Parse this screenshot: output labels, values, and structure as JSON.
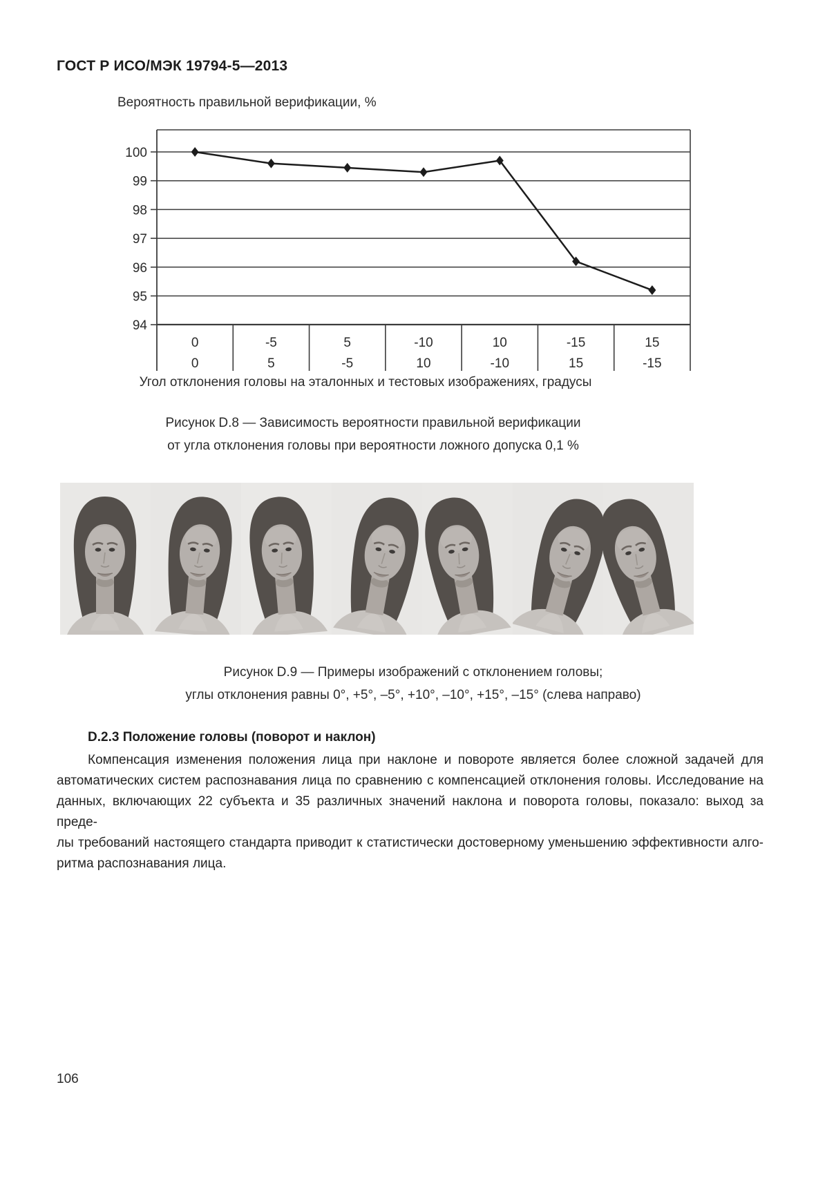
{
  "page": {
    "header": "ГОСТ Р ИСО/МЭК 19794-5—2013",
    "page_number": "106",
    "background": "#ffffff",
    "text_color": "#262626"
  },
  "chart_data": {
    "type": "line",
    "title": "Вероятность правильной верификации, %",
    "xlabel": "Угол отклонения головы на эталонных и тестовых изображениях, градусы",
    "x_tick_rows": [
      [
        "0",
        "-5",
        "5",
        "-10",
        "10",
        "-15",
        "15"
      ],
      [
        "0",
        "5",
        "-5",
        "10",
        "-10",
        "15",
        "-15"
      ]
    ],
    "values": [
      100,
      99.6,
      99.45,
      99.3,
      99.7,
      96.2,
      95.2
    ],
    "yticks": [
      100,
      99,
      98,
      97,
      96,
      95,
      94
    ],
    "ylim": [
      94,
      100.8
    ],
    "grid": true,
    "legend": "none",
    "marker": "diamond",
    "line_color": "#1c1c1c",
    "axis_color": "#3c3c3c"
  },
  "figure_d8": {
    "caption_line1": "Рисунок D.8 — Зависимость вероятности правильной верификации",
    "caption_line2": "от угла отклонения головы при вероятности ложного допуска 0,1 %"
  },
  "figure_d9": {
    "caption_line1": "Рисунок D.9 — Примеры изображений с отклонением головы;",
    "caption_line2": "углы отклонения равны 0°, +5°, –5°, +10°, –10°, +15°, –15° (слева направо)",
    "face_angles_deg": [
      0,
      5,
      -5,
      10,
      -10,
      15,
      -15
    ]
  },
  "section": {
    "heading": "D.2.3 Положение головы (поворот и наклон)",
    "paragraph_lines": [
      "Компенсация изменения положения лица при наклоне и повороте является более сложной задачей для",
      "автоматических систем распознавания лица по сравнению с компенсацией отклонения головы. Исследование на",
      "данных, включающих 22 субъекта и 35 различных значений наклона и поворота головы, показало: выход за преде-",
      "лы требований настоящего стандарта приводит к статистически достоверному уменьшению эффективности алго-",
      "ритма распознавания лица."
    ]
  }
}
